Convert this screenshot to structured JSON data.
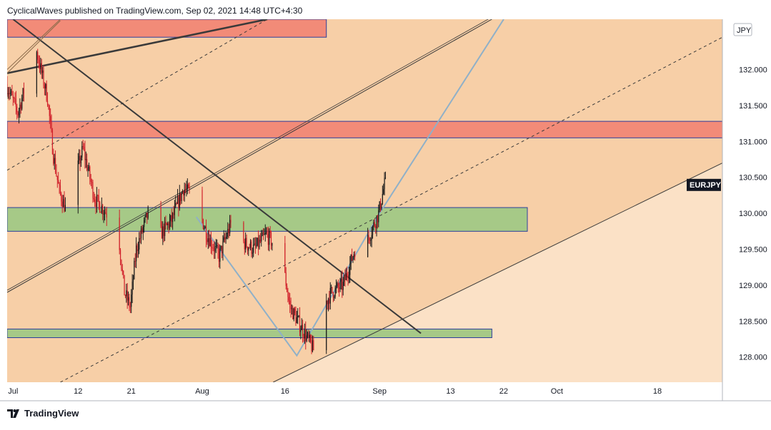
{
  "header": {
    "attribution": "CyclicalWaves published on TradingView.com, Sep 02, 2021 14:48 UTC+4:30"
  },
  "footer": {
    "brand": "TradingView",
    "logo_icon": "tradingview-logo-icon"
  },
  "chart_data": {
    "type": "candlestick",
    "symbol": "EURJPY",
    "currency": "JPY",
    "x_tick_labels": [
      "Jul",
      "12",
      "21",
      "Aug",
      "16",
      "Sep",
      "13",
      "22",
      "Oct",
      "18"
    ],
    "x_tick_dates": [
      "2021-07-01",
      "2021-07-12",
      "2021-07-21",
      "2021-08-02",
      "2021-08-16",
      "2021-09-01",
      "2021-09-13",
      "2021-09-22",
      "2021-10-01",
      "2021-10-18"
    ],
    "y_tick_labels": [
      "128.000",
      "128.500",
      "129.000",
      "129.500",
      "130.000",
      "130.500",
      "131.000",
      "131.500",
      "132.000"
    ],
    "ylim": [
      127.65,
      132.7
    ],
    "last_price_label": "EURJPY",
    "last_price": 130.4,
    "price_path": [
      {
        "date": "2021-06-30",
        "price": 131.8
      },
      {
        "date": "2021-07-02",
        "price": 131.4
      },
      {
        "date": "2021-07-05",
        "price": 132.3
      },
      {
        "date": "2021-07-07",
        "price": 131.6
      },
      {
        "date": "2021-07-08",
        "price": 130.8
      },
      {
        "date": "2021-07-09",
        "price": 130.3
      },
      {
        "date": "2021-07-11",
        "price": 129.85
      },
      {
        "date": "2021-07-12",
        "price": 130.6
      },
      {
        "date": "2021-07-13",
        "price": 130.9
      },
      {
        "date": "2021-07-15",
        "price": 130.2
      },
      {
        "date": "2021-07-17",
        "price": 130.0
      },
      {
        "date": "2021-07-19",
        "price": 129.7
      },
      {
        "date": "2021-07-20",
        "price": 128.9
      },
      {
        "date": "2021-07-21",
        "price": 128.7
      },
      {
        "date": "2021-07-22",
        "price": 129.5
      },
      {
        "date": "2021-07-24",
        "price": 130.0
      },
      {
        "date": "2021-07-26",
        "price": 129.7
      },
      {
        "date": "2021-07-28",
        "price": 129.9
      },
      {
        "date": "2021-07-30",
        "price": 130.35
      },
      {
        "date": "2021-08-01",
        "price": 130.2
      },
      {
        "date": "2021-08-03",
        "price": 129.7
      },
      {
        "date": "2021-08-05",
        "price": 129.4
      },
      {
        "date": "2021-08-07",
        "price": 129.85
      },
      {
        "date": "2021-08-09",
        "price": 129.6
      },
      {
        "date": "2021-08-11",
        "price": 129.5
      },
      {
        "date": "2021-08-13",
        "price": 129.7
      },
      {
        "date": "2021-08-15",
        "price": 129.5
      },
      {
        "date": "2021-08-16",
        "price": 129.2
      },
      {
        "date": "2021-08-17",
        "price": 128.7
      },
      {
        "date": "2021-08-19",
        "price": 128.4
      },
      {
        "date": "2021-08-21",
        "price": 128.1
      },
      {
        "date": "2021-08-22",
        "price": 128.6
      },
      {
        "date": "2021-08-24",
        "price": 128.9
      },
      {
        "date": "2021-08-26",
        "price": 129.0
      },
      {
        "date": "2021-08-28",
        "price": 129.5
      },
      {
        "date": "2021-08-30",
        "price": 129.6
      },
      {
        "date": "2021-09-01",
        "price": 130.0
      },
      {
        "date": "2021-09-02",
        "price": 130.4
      }
    ],
    "horizontal_zones": [
      {
        "name": "resistance-zone-top",
        "from": 132.45,
        "to": 132.7,
        "color": "#f28b78",
        "start": "2021-06-30",
        "end": "2021-08-23"
      },
      {
        "name": "resistance-zone",
        "from": 131.05,
        "to": 131.28,
        "color": "#f28b78",
        "start": "2021-06-30",
        "end": "2021-10-29"
      },
      {
        "name": "support-zone",
        "from": 129.75,
        "to": 130.08,
        "color": "#a6c987",
        "start": "2021-06-30",
        "end": "2021-09-26"
      },
      {
        "name": "support-zone-low",
        "from": 128.27,
        "to": 128.39,
        "color": "#a6c987",
        "start": "2021-06-30",
        "end": "2021-09-20"
      }
    ],
    "trend_lines": [
      {
        "name": "descending-trendline",
        "start": {
          "date": "2021-07-01",
          "price": 132.7
        },
        "end": {
          "date": "2021-09-08",
          "price": 128.33
        },
        "color": "#3a3a3a"
      },
      {
        "name": "upper-fan-line",
        "start": {
          "date": "2021-06-30",
          "price": 131.95
        },
        "end": {
          "date": "2021-08-13",
          "price": 132.7
        },
        "color": "#3a3a3a"
      },
      {
        "name": "channel-upper",
        "start": {
          "date": "2021-06-30",
          "price": 128.9
        },
        "end": {
          "date": "2021-09-20",
          "price": 132.7
        },
        "color": "#3a3a3a"
      },
      {
        "name": "channel-lower",
        "start": {
          "date": "2021-08-14",
          "price": 127.65
        },
        "end": {
          "date": "2021-10-29",
          "price": 130.7
        },
        "color": "#3a3a3a"
      },
      {
        "name": "channel-mid-dashed-upper",
        "start": {
          "date": "2021-06-30",
          "price": 130.6
        },
        "end": {
          "date": "2021-08-13",
          "price": 132.7
        },
        "dashed": true,
        "color": "#3a3a3a"
      },
      {
        "name": "channel-mid-dashed-lower",
        "start": {
          "date": "2021-07-09",
          "price": 127.65
        },
        "end": {
          "date": "2021-10-29",
          "price": 132.45
        },
        "dashed": true,
        "color": "#3a3a3a"
      }
    ],
    "projection_path": {
      "name": "v-projection",
      "points": [
        {
          "date": "2021-08-01",
          "price": 129.95
        },
        {
          "date": "2021-08-18",
          "price": 128.02
        },
        {
          "date": "2021-09-01",
          "price": 130.0
        },
        {
          "date": "2021-09-22",
          "price": 132.7
        }
      ],
      "color": "#8fb0c8"
    },
    "grid": false,
    "background_colors": {
      "zone_dark": "#f7cfa7",
      "zone_light": "#fbe1c6"
    }
  }
}
